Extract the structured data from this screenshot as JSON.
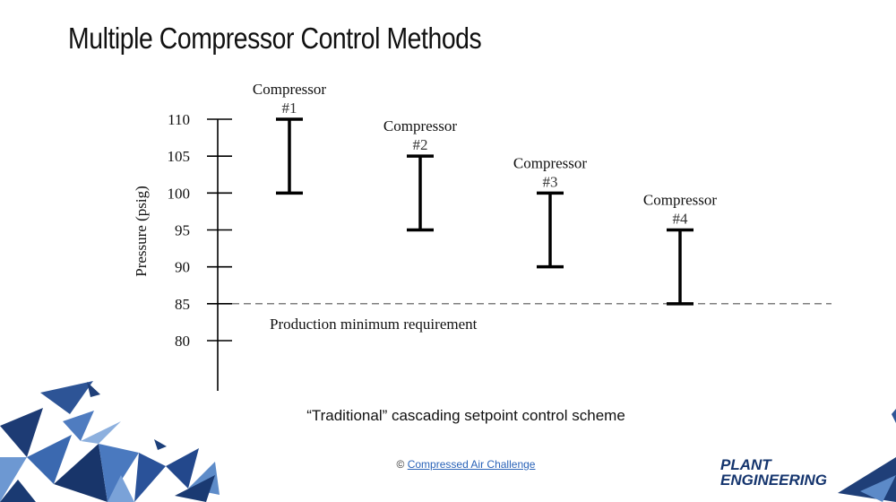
{
  "slide": {
    "title": "Multiple Compressor Control Methods",
    "caption": "“Traditional” cascading setpoint control scheme",
    "footer_prefix": "©",
    "footer_link": "Compressed Air Challenge",
    "logo_line1": "PLANT",
    "logo_line2": "ENGINEERING"
  },
  "colors": {
    "text": "#111111",
    "link": "#2a63b8",
    "decor_dark": "#1c3f7a",
    "decor_light": "#5c8ac8"
  },
  "chart_data": {
    "type": "range",
    "ylabel": "Pressure (psig)",
    "yticks": [
      80,
      85,
      90,
      95,
      100,
      105,
      110
    ],
    "ylim": [
      73,
      110
    ],
    "series": [
      {
        "name": "Compressor #1",
        "name_line1": "Compressor",
        "name_line2": "#1",
        "low": 100,
        "high": 110
      },
      {
        "name": "Compressor #2",
        "name_line1": "Compressor",
        "name_line2": "#2",
        "low": 95,
        "high": 105
      },
      {
        "name": "Compressor #3",
        "name_line1": "Compressor",
        "name_line2": "#3",
        "low": 90,
        "high": 100
      },
      {
        "name": "Compressor #4",
        "name_line1": "Compressor",
        "name_line2": "#4",
        "low": 85,
        "high": 95
      }
    ],
    "reference_line": {
      "value": 85,
      "style": "dashed",
      "label": "Production minimum requirement"
    }
  }
}
